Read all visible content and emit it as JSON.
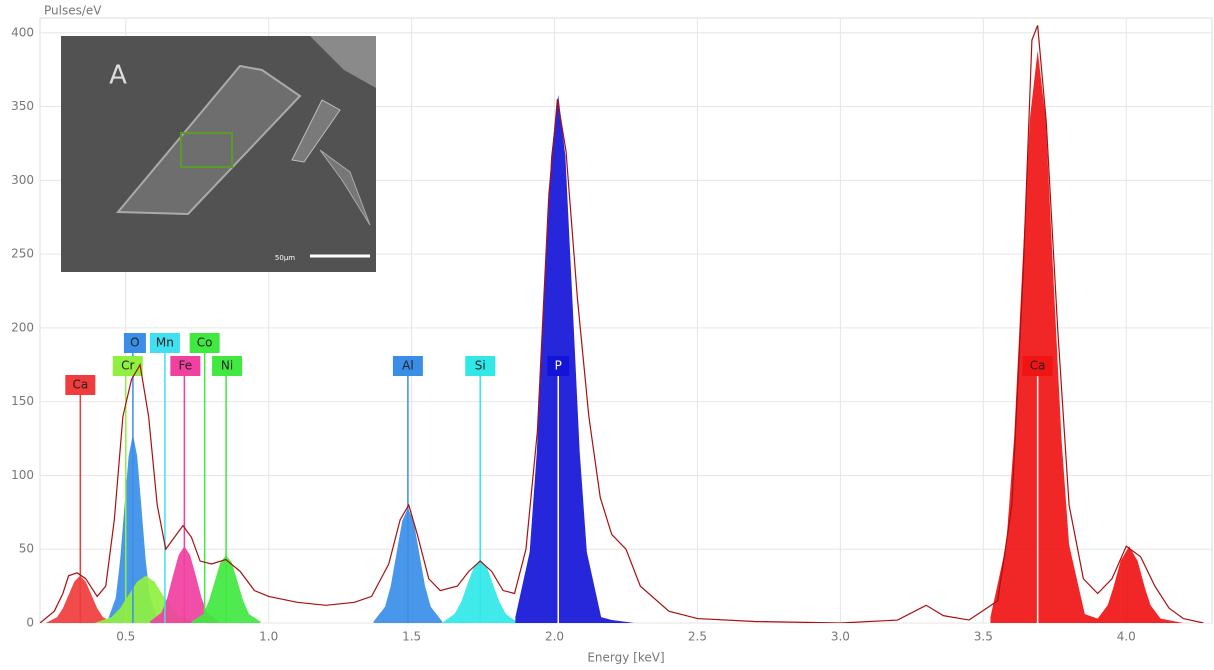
{
  "chart_data": {
    "type": "area",
    "y_label": "Pulses/eV",
    "x_label": "Energy [keV]",
    "xlim": [
      0.2,
      4.3
    ],
    "ylim": [
      0,
      410
    ],
    "xticks": [
      {
        "value": 0.5,
        "label": "0.5"
      },
      {
        "value": 1,
        "label": "1.0"
      },
      {
        "value": 1.5,
        "label": "1.5"
      },
      {
        "value": 2,
        "label": "2.0"
      },
      {
        "value": 2.5,
        "label": "2.5"
      },
      {
        "value": 3,
        "label": "3.0"
      },
      {
        "value": 3.5,
        "label": "3.5"
      },
      {
        "value": 4,
        "label": "4.0"
      }
    ],
    "yticks": [
      0,
      50,
      100,
      150,
      200,
      250,
      300,
      350,
      400
    ],
    "grid": true,
    "inset": {
      "label": "A",
      "scale_bar": "50µm"
    },
    "series": [
      {
        "name": "Ca",
        "color": "#f03c3c",
        "energy": 0.341,
        "x": [
          0.22,
          0.26,
          0.28,
          0.3,
          0.32,
          0.34,
          0.36,
          0.38,
          0.4,
          0.42,
          0.46
        ],
        "values": [
          0,
          4,
          10,
          19,
          28,
          32,
          28,
          19,
          10,
          4,
          0
        ]
      },
      {
        "name": "O",
        "color": "#3a8ee8",
        "energy": 0.525,
        "x": [
          0.435,
          0.465,
          0.48,
          0.495,
          0.51,
          0.525,
          0.54,
          0.555,
          0.57,
          0.585,
          0.615
        ],
        "values": [
          1,
          17,
          42,
          78,
          113,
          128,
          113,
          78,
          42,
          17,
          1
        ]
      },
      {
        "name": "Cr",
        "color": "#90f040",
        "energy": 0.5,
        "x": [
          0.39,
          0.45,
          0.48,
          0.51,
          0.54,
          0.57,
          0.6,
          0.63,
          0.66,
          0.69,
          0.75
        ],
        "values": [
          0,
          4,
          10,
          19,
          28,
          32,
          28,
          19,
          10,
          4,
          0
        ]
      },
      {
        "name": "Mn",
        "color": "#40e0f0",
        "energy": 0.637
      },
      {
        "name": "Fe",
        "color": "#f040a0",
        "energy": 0.705,
        "x": [
          0.585,
          0.625,
          0.645,
          0.665,
          0.685,
          0.705,
          0.725,
          0.745,
          0.765,
          0.785,
          0.825
        ],
        "values": [
          1,
          7,
          17,
          32,
          46,
          52,
          46,
          32,
          17,
          7,
          1
        ]
      },
      {
        "name": "Co",
        "color": "#40e840",
        "energy": 0.776
      },
      {
        "name": "Ni",
        "color": "#40e840",
        "energy": 0.851,
        "x": [
          0.731,
          0.771,
          0.791,
          0.811,
          0.831,
          0.851,
          0.871,
          0.891,
          0.911,
          0.931,
          0.971
        ],
        "values": [
          1,
          6,
          15,
          28,
          41,
          46,
          41,
          28,
          15,
          6,
          1
        ]
      },
      {
        "name": "Al",
        "color": "#3a8ee8",
        "energy": 1.487,
        "x": [
          1.367,
          1.407,
          1.427,
          1.447,
          1.467,
          1.487,
          1.507,
          1.527,
          1.547,
          1.567,
          1.607
        ],
        "values": [
          1,
          11,
          25,
          47,
          69,
          78,
          69,
          47,
          25,
          11,
          1
        ]
      },
      {
        "name": "Si",
        "color": "#30e8e8",
        "energy": 1.74,
        "x": [
          1.605,
          1.65,
          1.673,
          1.695,
          1.718,
          1.74,
          1.763,
          1.785,
          1.808,
          1.83,
          1.875
        ],
        "values": [
          0,
          6,
          14,
          26,
          38,
          43,
          38,
          26,
          14,
          6,
          0
        ]
      },
      {
        "name": "P",
        "color": "#1414d8",
        "energy": 2.013,
        "x": [
          1.863,
          1.913,
          1.938,
          1.963,
          1.988,
          2.013,
          2.038,
          2.063,
          2.088,
          2.113,
          2.163,
          2.2,
          2.28
        ],
        "values": [
          4,
          48,
          116,
          217,
          316,
          358,
          316,
          217,
          116,
          48,
          4,
          2,
          0
        ]
      },
      {
        "name": "Ca",
        "color": "#f01414",
        "energy": 3.69,
        "x": [
          3.525,
          3.58,
          3.608,
          3.635,
          3.663,
          3.69,
          3.718,
          3.745,
          3.773,
          3.8,
          3.855,
          3.9,
          3.935,
          3.955,
          3.98,
          4.01,
          4.04,
          4.065,
          4.085,
          4.12,
          4.2
        ],
        "values": [
          4,
          53,
          126,
          235,
          342,
          388,
          342,
          235,
          126,
          53,
          6,
          3,
          12,
          24,
          42,
          52,
          42,
          24,
          12,
          3,
          0
        ]
      }
    ],
    "spectrum": {
      "color": "#a81010",
      "x": [
        0.2,
        0.25,
        0.28,
        0.3,
        0.33,
        0.36,
        0.4,
        0.43,
        0.46,
        0.49,
        0.52,
        0.55,
        0.58,
        0.61,
        0.64,
        0.67,
        0.7,
        0.73,
        0.76,
        0.8,
        0.85,
        0.9,
        0.95,
        1.0,
        1.1,
        1.2,
        1.3,
        1.36,
        1.42,
        1.46,
        1.49,
        1.52,
        1.56,
        1.6,
        1.66,
        1.7,
        1.74,
        1.78,
        1.82,
        1.86,
        1.9,
        1.94,
        1.98,
        2.01,
        2.04,
        2.08,
        2.12,
        2.16,
        2.2,
        2.25,
        2.3,
        2.4,
        2.5,
        2.7,
        3.0,
        3.2,
        3.3,
        3.36,
        3.45,
        3.55,
        3.6,
        3.64,
        3.67,
        3.69,
        3.72,
        3.76,
        3.8,
        3.85,
        3.9,
        3.95,
        4.0,
        4.05,
        4.1,
        4.15,
        4.2,
        4.27
      ],
      "values": [
        0,
        8,
        20,
        32,
        34,
        30,
        18,
        25,
        70,
        140,
        165,
        175,
        140,
        80,
        50,
        58,
        66,
        58,
        42,
        40,
        43,
        35,
        22,
        18,
        14,
        12,
        14,
        18,
        40,
        70,
        80,
        60,
        30,
        22,
        25,
        35,
        42,
        35,
        22,
        20,
        50,
        130,
        290,
        355,
        320,
        220,
        140,
        85,
        60,
        50,
        25,
        8,
        3,
        1,
        0,
        2,
        12,
        5,
        2,
        15,
        80,
        240,
        395,
        405,
        340,
        200,
        80,
        30,
        20,
        30,
        52,
        45,
        25,
        10,
        3,
        0
      ]
    }
  }
}
